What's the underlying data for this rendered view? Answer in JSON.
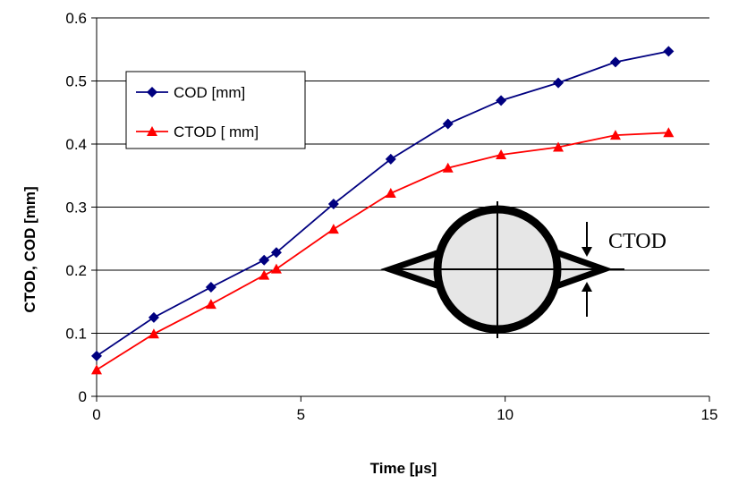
{
  "chart_data": {
    "type": "line",
    "title": "",
    "xlabel": "Time [µs]",
    "ylabel": "CTOD, COD [mm]",
    "xlim": [
      0,
      15
    ],
    "ylim": [
      0,
      0.6
    ],
    "xticks": [
      "0",
      "5",
      "10",
      "15"
    ],
    "yticks": [
      "0",
      "0.1",
      "0.2",
      "0.3",
      "0.4",
      "0.5",
      "0.6"
    ],
    "grid": "horizontal",
    "legend_position": "top-left",
    "series": [
      {
        "name": "COD [mm]",
        "color": "#000080",
        "marker": "diamond",
        "x": [
          0,
          1.4,
          2.8,
          4.1,
          4.4,
          5.8,
          7.2,
          8.6,
          9.9,
          11.3,
          12.7,
          14.0
        ],
        "y": [
          0.064,
          0.125,
          0.173,
          0.216,
          0.228,
          0.305,
          0.376,
          0.432,
          0.469,
          0.497,
          0.53,
          0.547
        ]
      },
      {
        "name": "CTOD [ mm]",
        "color": "#ff0000",
        "marker": "triangle",
        "x": [
          0,
          1.4,
          2.8,
          4.1,
          4.4,
          5.8,
          7.2,
          8.6,
          9.9,
          11.3,
          12.7,
          14.0
        ],
        "y": [
          0.042,
          0.099,
          0.146,
          0.192,
          0.202,
          0.265,
          0.322,
          0.362,
          0.383,
          0.395,
          0.414,
          0.418
        ]
      }
    ],
    "annotation": {
      "label": "CTOD",
      "icon": "crack-tip-opening-diagram"
    }
  }
}
